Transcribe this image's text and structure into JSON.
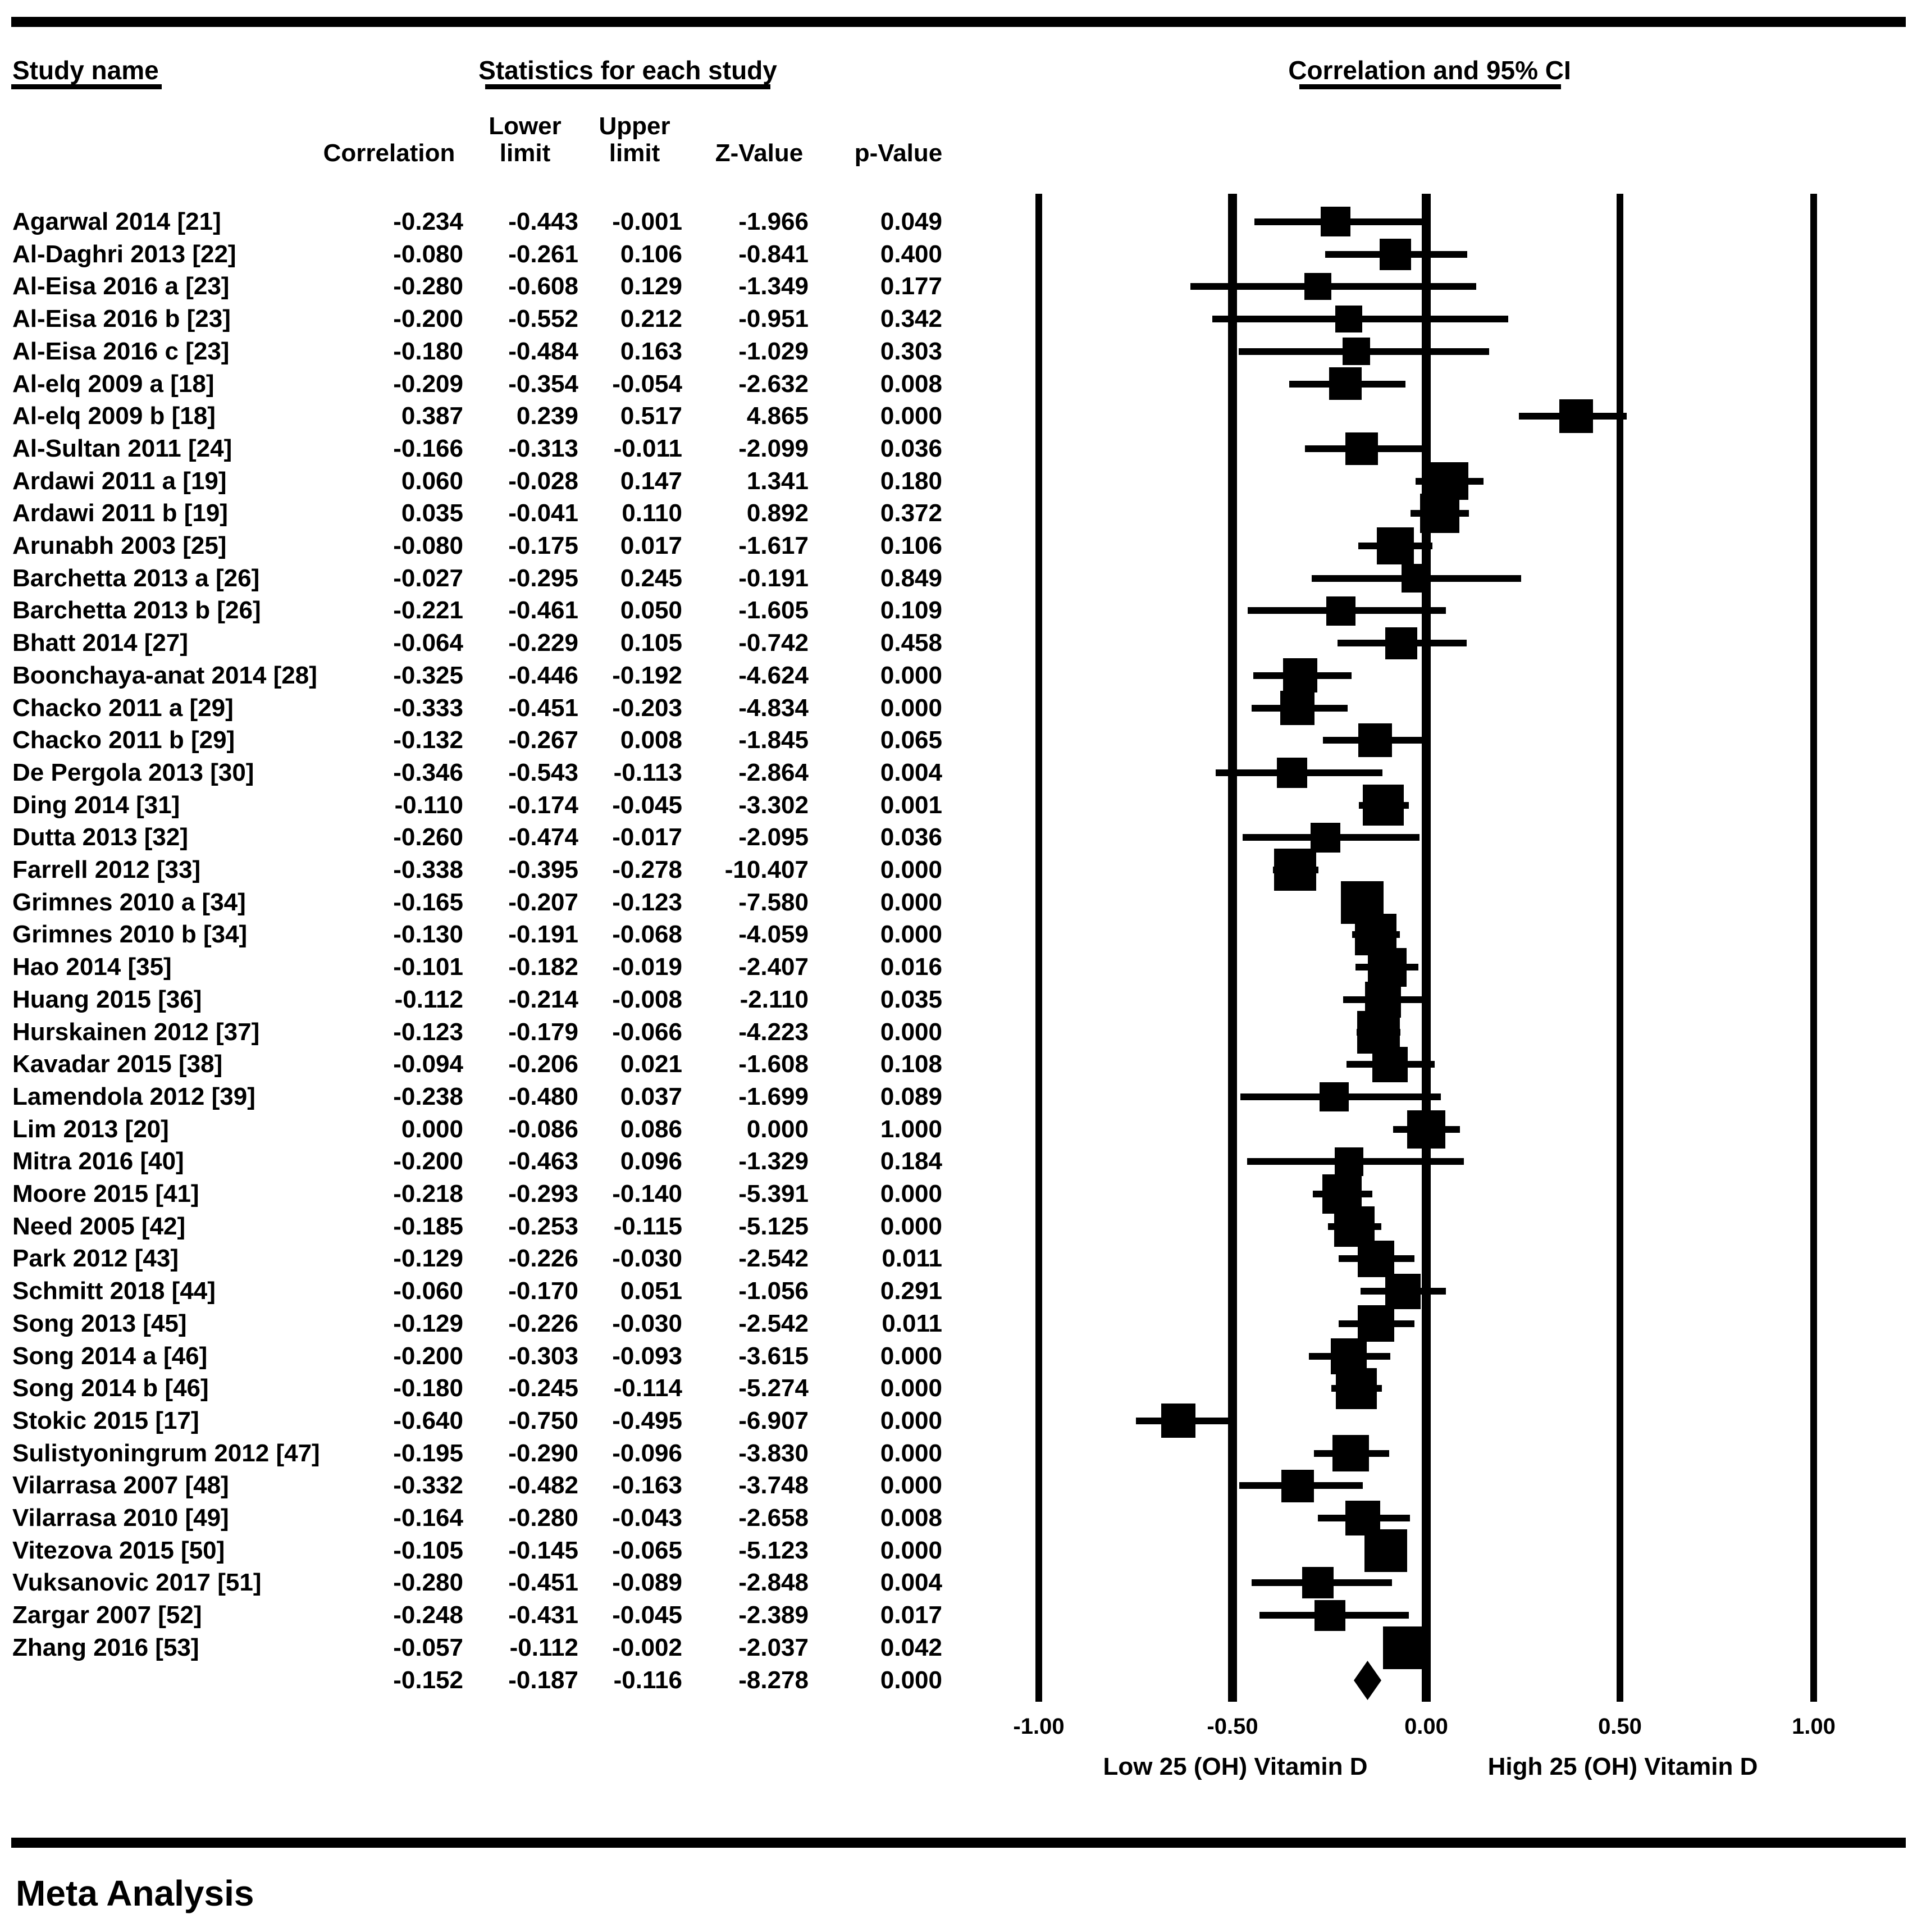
{
  "colors": {
    "ink": "#000000",
    "paper": "#ffffff"
  },
  "header": {
    "study_name_title": "Study name",
    "stats_title": "Statistics for each study",
    "plot_title": "Correlation and 95% CI",
    "col_line1": {
      "lower": "Lower",
      "upper": "Upper"
    },
    "col_line2": {
      "correlation": "Correlation",
      "lower": "limit",
      "upper": "limit",
      "z": "Z-Value",
      "p": "p-Value"
    }
  },
  "axis": {
    "ticks": [
      -1.0,
      -0.5,
      0.0,
      0.5,
      1.0
    ],
    "tick_labels": [
      "-1.00",
      "-0.50",
      "0.00",
      "0.50",
      "1.00"
    ],
    "left_label": "Low 25 (OH) Vitamin D",
    "right_label": "High 25 (OH) Vitamin D"
  },
  "footer": {
    "label": "Meta Analysis"
  },
  "chart_data": {
    "type": "forest",
    "title": "Correlation and 95% CI",
    "xlim": [
      -1.0,
      1.0
    ],
    "x_reference_lines": [
      -1.0,
      -0.5,
      0.0,
      0.5,
      1.0
    ],
    "columns": [
      "Correlation",
      "Lower limit",
      "Upper limit",
      "Z-Value",
      "p-Value"
    ],
    "studies": [
      {
        "name": "Agarwal 2014 [21]",
        "correlation": -0.234,
        "lower": -0.443,
        "upper": -0.001,
        "z": -1.966,
        "p": 0.049
      },
      {
        "name": "Al-Daghri 2013 [22]",
        "correlation": -0.08,
        "lower": -0.261,
        "upper": 0.106,
        "z": -0.841,
        "p": 0.4
      },
      {
        "name": "Al-Eisa 2016 a [23]",
        "correlation": -0.28,
        "lower": -0.608,
        "upper": 0.129,
        "z": -1.349,
        "p": 0.177
      },
      {
        "name": "Al-Eisa 2016 b [23]",
        "correlation": -0.2,
        "lower": -0.552,
        "upper": 0.212,
        "z": -0.951,
        "p": 0.342
      },
      {
        "name": "Al-Eisa 2016 c [23]",
        "correlation": -0.18,
        "lower": -0.484,
        "upper": 0.163,
        "z": -1.029,
        "p": 0.303
      },
      {
        "name": "Al-elq 2009 a [18]",
        "correlation": -0.209,
        "lower": -0.354,
        "upper": -0.054,
        "z": -2.632,
        "p": 0.008
      },
      {
        "name": "Al-elq 2009 b [18]",
        "correlation": 0.387,
        "lower": 0.239,
        "upper": 0.517,
        "z": 4.865,
        "p": 0.0
      },
      {
        "name": "Al-Sultan 2011 [24]",
        "correlation": -0.166,
        "lower": -0.313,
        "upper": -0.011,
        "z": -2.099,
        "p": 0.036
      },
      {
        "name": "Ardawi 2011 a [19]",
        "correlation": 0.06,
        "lower": -0.028,
        "upper": 0.147,
        "z": 1.341,
        "p": 0.18
      },
      {
        "name": "Ardawi 2011 b [19]",
        "correlation": 0.035,
        "lower": -0.041,
        "upper": 0.11,
        "z": 0.892,
        "p": 0.372
      },
      {
        "name": "Arunabh 2003 [25]",
        "correlation": -0.08,
        "lower": -0.175,
        "upper": 0.017,
        "z": -1.617,
        "p": 0.106
      },
      {
        "name": "Barchetta 2013 a [26]",
        "correlation": -0.027,
        "lower": -0.295,
        "upper": 0.245,
        "z": -0.191,
        "p": 0.849
      },
      {
        "name": "Barchetta 2013 b [26]",
        "correlation": -0.221,
        "lower": -0.461,
        "upper": 0.05,
        "z": -1.605,
        "p": 0.109
      },
      {
        "name": "Bhatt 2014 [27]",
        "correlation": -0.064,
        "lower": -0.229,
        "upper": 0.105,
        "z": -0.742,
        "p": 0.458
      },
      {
        "name": "Boonchaya-anat 2014 [28]",
        "correlation": -0.325,
        "lower": -0.446,
        "upper": -0.192,
        "z": -4.624,
        "p": 0.0
      },
      {
        "name": "Chacko 2011 a [29]",
        "correlation": -0.333,
        "lower": -0.451,
        "upper": -0.203,
        "z": -4.834,
        "p": 0.0
      },
      {
        "name": "Chacko 2011 b [29]",
        "correlation": -0.132,
        "lower": -0.267,
        "upper": 0.008,
        "z": -1.845,
        "p": 0.065
      },
      {
        "name": "De Pergola 2013 [30]",
        "correlation": -0.346,
        "lower": -0.543,
        "upper": -0.113,
        "z": -2.864,
        "p": 0.004
      },
      {
        "name": "Ding 2014 [31]",
        "correlation": -0.11,
        "lower": -0.174,
        "upper": -0.045,
        "z": -3.302,
        "p": 0.001
      },
      {
        "name": "Dutta 2013 [32]",
        "correlation": -0.26,
        "lower": -0.474,
        "upper": -0.017,
        "z": -2.095,
        "p": 0.036
      },
      {
        "name": "Farrell 2012 [33]",
        "correlation": -0.338,
        "lower": -0.395,
        "upper": -0.278,
        "z": -10.407,
        "p": 0.0
      },
      {
        "name": "Grimnes 2010 a [34]",
        "correlation": -0.165,
        "lower": -0.207,
        "upper": -0.123,
        "z": -7.58,
        "p": 0.0
      },
      {
        "name": "Grimnes 2010 b [34]",
        "correlation": -0.13,
        "lower": -0.191,
        "upper": -0.068,
        "z": -4.059,
        "p": 0.0
      },
      {
        "name": "Hao 2014 [35]",
        "correlation": -0.101,
        "lower": -0.182,
        "upper": -0.019,
        "z": -2.407,
        "p": 0.016
      },
      {
        "name": "Huang 2015 [36]",
        "correlation": -0.112,
        "lower": -0.214,
        "upper": -0.008,
        "z": -2.11,
        "p": 0.035
      },
      {
        "name": "Hurskainen 2012 [37]",
        "correlation": -0.123,
        "lower": -0.179,
        "upper": -0.066,
        "z": -4.223,
        "p": 0.0
      },
      {
        "name": "Kavadar 2015 [38]",
        "correlation": -0.094,
        "lower": -0.206,
        "upper": 0.021,
        "z": -1.608,
        "p": 0.108
      },
      {
        "name": "Lamendola 2012 [39]",
        "correlation": -0.238,
        "lower": -0.48,
        "upper": 0.037,
        "z": -1.699,
        "p": 0.089
      },
      {
        "name": "Lim 2013 [20]",
        "correlation": 0.0,
        "lower": -0.086,
        "upper": 0.086,
        "z": 0.0,
        "p": 1.0
      },
      {
        "name": "Mitra 2016 [40]",
        "correlation": -0.2,
        "lower": -0.463,
        "upper": 0.096,
        "z": -1.329,
        "p": 0.184
      },
      {
        "name": "Moore 2015 [41]",
        "correlation": -0.218,
        "lower": -0.293,
        "upper": -0.14,
        "z": -5.391,
        "p": 0.0
      },
      {
        "name": "Need 2005 [42]",
        "correlation": -0.185,
        "lower": -0.253,
        "upper": -0.115,
        "z": -5.125,
        "p": 0.0
      },
      {
        "name": "Park 2012 [43]",
        "correlation": -0.129,
        "lower": -0.226,
        "upper": -0.03,
        "z": -2.542,
        "p": 0.011
      },
      {
        "name": "Schmitt 2018 [44]",
        "correlation": -0.06,
        "lower": -0.17,
        "upper": 0.051,
        "z": -1.056,
        "p": 0.291
      },
      {
        "name": "Song 2013 [45]",
        "correlation": -0.129,
        "lower": -0.226,
        "upper": -0.03,
        "z": -2.542,
        "p": 0.011
      },
      {
        "name": "Song 2014 a [46]",
        "correlation": -0.2,
        "lower": -0.303,
        "upper": -0.093,
        "z": -3.615,
        "p": 0.0
      },
      {
        "name": "Song 2014 b [46]",
        "correlation": -0.18,
        "lower": -0.245,
        "upper": -0.114,
        "z": -5.274,
        "p": 0.0
      },
      {
        "name": "Stokic 2015 [17]",
        "correlation": -0.64,
        "lower": -0.75,
        "upper": -0.495,
        "z": -6.907,
        "p": 0.0
      },
      {
        "name": "Sulistyoningrum 2012 [47]",
        "correlation": -0.195,
        "lower": -0.29,
        "upper": -0.096,
        "z": -3.83,
        "p": 0.0
      },
      {
        "name": "Vilarrasa 2007 [48]",
        "correlation": -0.332,
        "lower": -0.482,
        "upper": -0.163,
        "z": -3.748,
        "p": 0.0
      },
      {
        "name": "Vilarrasa 2010 [49]",
        "correlation": -0.164,
        "lower": -0.28,
        "upper": -0.043,
        "z": -2.658,
        "p": 0.008
      },
      {
        "name": "Vitezova 2015 [50]",
        "correlation": -0.105,
        "lower": -0.145,
        "upper": -0.065,
        "z": -5.123,
        "p": 0.0
      },
      {
        "name": "Vuksanovic 2017 [51]",
        "correlation": -0.28,
        "lower": -0.451,
        "upper": -0.089,
        "z": -2.848,
        "p": 0.004
      },
      {
        "name": "Zargar 2007 [52]",
        "correlation": -0.248,
        "lower": -0.431,
        "upper": -0.045,
        "z": -2.389,
        "p": 0.017
      },
      {
        "name": "Zhang 2016 [53]",
        "correlation": -0.057,
        "lower": -0.112,
        "upper": -0.002,
        "z": -2.037,
        "p": 0.042
      }
    ],
    "overall": {
      "name": "",
      "correlation": -0.152,
      "lower": -0.187,
      "upper": -0.116,
      "z": -8.278,
      "p": 0.0
    }
  }
}
